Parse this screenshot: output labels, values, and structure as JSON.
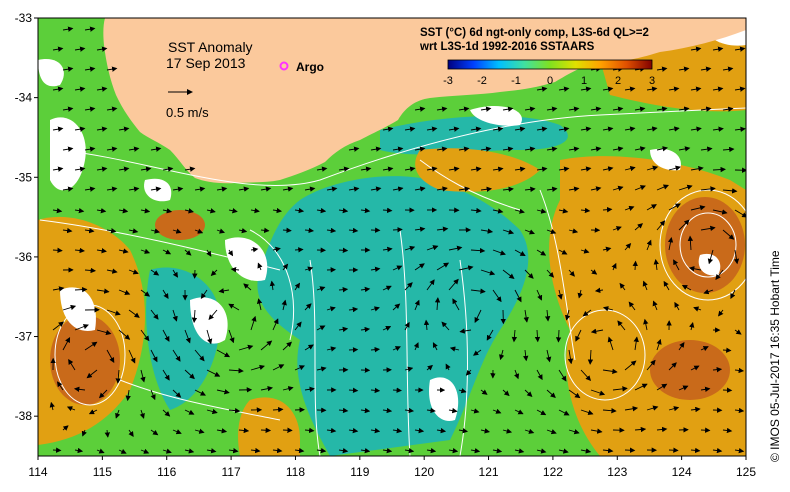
{
  "map": {
    "title": "SST Anomaly",
    "date": "17 Sep 2013",
    "argo_label": "Argo",
    "vector_scale_label": "0.5 m/s",
    "lon_range": [
      114,
      125
    ],
    "lat_range": [
      -38.5,
      -33
    ],
    "lon_ticks": [
      "114",
      "115",
      "116",
      "117",
      "118",
      "119",
      "120",
      "121",
      "122",
      "123",
      "124",
      "125"
    ],
    "lat_ticks": [
      "-33",
      "-34",
      "-35",
      "-36",
      "-37",
      "-38"
    ],
    "colors": {
      "land": "#fbc99c",
      "ocean_base": "#5ccf3a",
      "cool_patch": "#25b8a8",
      "warm_patch": "#e1a012",
      "hot_patch": "#c96a1a",
      "cloud": "#ffffff",
      "argo_marker": "#ff33ff",
      "contour": "#ffffff",
      "vector": "#000000"
    }
  },
  "colorbar": {
    "title_line1": "SST (°C) 6d ngt-only comp, L3S-6d QL>=2",
    "title_line2": "wrt L3S-1d 1992-2016 SSTAARS",
    "ticks": [
      "-3",
      "-2",
      "-1",
      "0",
      "1",
      "2",
      "3"
    ],
    "colors": [
      "#00007f",
      "#0040ff",
      "#00c0ff",
      "#40e0a0",
      "#80e020",
      "#e0e000",
      "#ffa000",
      "#e05000",
      "#800000"
    ]
  },
  "credit": "© IMOS 05-Jul-2017 16:35 Hobart Time"
}
